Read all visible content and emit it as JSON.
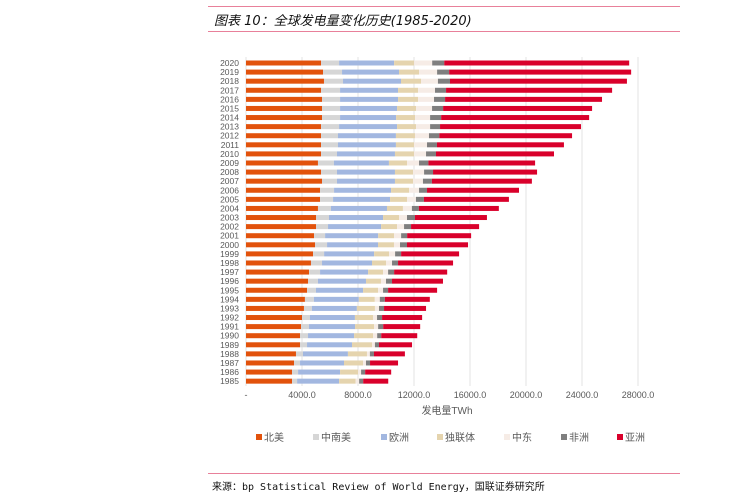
{
  "title": "图表 10：全球发电量变化历史(1985-2020)",
  "source": "来源：bp Statistical Review of World Energy，国联证券研究所",
  "chart_data": {
    "type": "bar",
    "orientation": "horizontal",
    "stacked": true,
    "title": "图表 10：全球发电量变化历史(1985-2020)",
    "xlabel": "发电量TWh",
    "ylabel": "",
    "xlim": [
      0,
      28000
    ],
    "x_ticks": [
      0,
      4000,
      8000,
      12000,
      16000,
      20000,
      24000,
      28000
    ],
    "x_tick_labels": [
      "-",
      "4000.0",
      "8000.0",
      "12000.0",
      "16000.0",
      "20000.0",
      "24000.0",
      "28000.0"
    ],
    "grid": true,
    "legend_position": "bottom",
    "categories": [
      "2020",
      "2019",
      "2018",
      "2017",
      "2016",
      "2015",
      "2014",
      "2013",
      "2012",
      "2011",
      "2010",
      "2009",
      "2008",
      "2007",
      "2006",
      "2005",
      "2004",
      "2003",
      "2002",
      "2001",
      "2000",
      "1999",
      "1998",
      "1997",
      "1996",
      "1995",
      "1994",
      "1993",
      "1992",
      "1991",
      "1990",
      "1989",
      "1988",
      "1987",
      "1986",
      "1985"
    ],
    "series": [
      {
        "name": "北美",
        "color": "#e2520c",
        "values": [
          5360,
          5500,
          5570,
          5360,
          5430,
          5430,
          5430,
          5360,
          5360,
          5360,
          5360,
          5140,
          5360,
          5430,
          5290,
          5290,
          5140,
          5000,
          5000,
          4860,
          4930,
          4790,
          4640,
          4500,
          4430,
          4360,
          4210,
          4140,
          4000,
          3930,
          3860,
          3860,
          3570,
          3430,
          3290,
          3290
        ]
      },
      {
        "name": "中南美",
        "color": "#d6d6d6",
        "values": [
          1290,
          1360,
          1360,
          1360,
          1290,
          1290,
          1290,
          1290,
          1210,
          1210,
          1140,
          1140,
          1140,
          1070,
          1000,
          930,
          930,
          930,
          860,
          790,
          860,
          790,
          790,
          790,
          710,
          640,
          640,
          570,
          570,
          570,
          570,
          500,
          500,
          430,
          430,
          360
        ]
      },
      {
        "name": "欧洲",
        "color": "#a2b7e0",
        "values": [
          3930,
          4070,
          4140,
          4140,
          4140,
          4070,
          4000,
          4140,
          4140,
          4140,
          4140,
          3930,
          4140,
          4140,
          4070,
          4070,
          4000,
          3860,
          3790,
          3790,
          3640,
          3570,
          3570,
          3430,
          3430,
          3360,
          3210,
          3210,
          3210,
          3290,
          3290,
          3210,
          3210,
          3140,
          3000,
          3000
        ]
      },
      {
        "name": "独联体",
        "color": "#e5d4ae",
        "values": [
          1430,
          1430,
          1430,
          1430,
          1430,
          1360,
          1360,
          1360,
          1360,
          1290,
          1360,
          1290,
          1290,
          1290,
          1290,
          1210,
          1140,
          1140,
          1140,
          1140,
          1140,
          1070,
          1000,
          1070,
          1070,
          1070,
          1140,
          1290,
          1290,
          1360,
          1360,
          1430,
          1360,
          1360,
          1290,
          1180
        ]
      },
      {
        "name": "中东",
        "color": "#f6ece6",
        "values": [
          1290,
          1290,
          1210,
          1210,
          1140,
          1140,
          1070,
          1000,
          1000,
          930,
          860,
          860,
          790,
          710,
          710,
          640,
          640,
          570,
          500,
          500,
          430,
          430,
          430,
          360,
          360,
          360,
          360,
          290,
          290,
          290,
          290,
          210,
          210,
          210,
          210,
          250
        ]
      },
      {
        "name": "非洲",
        "color": "#7f7f7f",
        "values": [
          860,
          860,
          860,
          790,
          790,
          790,
          790,
          710,
          740,
          710,
          710,
          670,
          640,
          640,
          570,
          570,
          500,
          570,
          500,
          430,
          500,
          430,
          430,
          430,
          430,
          360,
          360,
          360,
          360,
          360,
          290,
          290,
          290,
          290,
          290,
          290
        ]
      },
      {
        "name": "亚洲",
        "color": "#d9002b",
        "values": [
          13210,
          13000,
          12640,
          11860,
          11210,
          10640,
          10570,
          10070,
          9480,
          9070,
          8430,
          7620,
          7430,
          7140,
          6570,
          6070,
          5710,
          5140,
          4860,
          4570,
          4360,
          4140,
          3930,
          3790,
          3640,
          3500,
          3210,
          3000,
          2860,
          2640,
          2570,
          2360,
          2210,
          2000,
          1860,
          1790
        ]
      }
    ]
  }
}
